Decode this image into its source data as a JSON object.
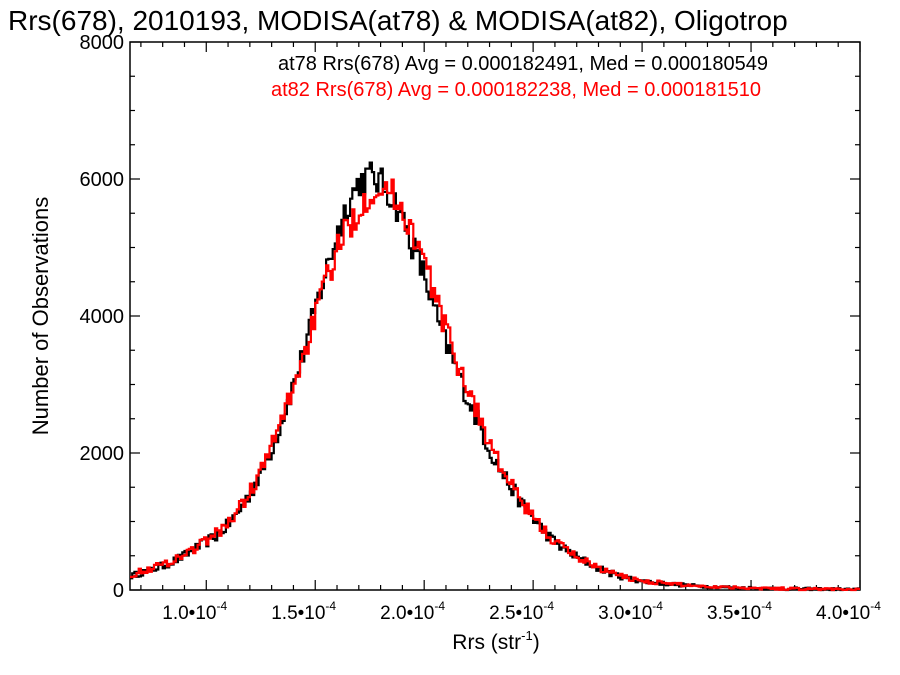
{
  "chart_data": {
    "type": "line",
    "title": "Rrs(678), 2010193, MODISA(at78) & MODISA(at82), Oligotrop",
    "xlabel": "Rrs (str",
    "xlabel_sup": "-1",
    "xlabel_close": ")",
    "ylabel": "Number of Observations",
    "xlim": [
      6.5e-05,
      0.0004
    ],
    "ylim": [
      0,
      8000
    ],
    "x_ticks": [
      {
        "value": 0.0001,
        "label": "1.0•10",
        "exp": "-4"
      },
      {
        "value": 0.00015,
        "label": "1.5•10",
        "exp": "-4"
      },
      {
        "value": 0.0002,
        "label": "2.0•10",
        "exp": "-4"
      },
      {
        "value": 0.00025,
        "label": "2.5•10",
        "exp": "-4"
      },
      {
        "value": 0.0003,
        "label": "3.0•10",
        "exp": "-4"
      },
      {
        "value": 0.00035,
        "label": "3.5•10",
        "exp": "-4"
      },
      {
        "value": 0.0004,
        "label": "4.0•10",
        "exp": "-4"
      }
    ],
    "y_ticks": [
      {
        "value": 0,
        "label": "0"
      },
      {
        "value": 2000,
        "label": "2000"
      },
      {
        "value": 4000,
        "label": "4000"
      },
      {
        "value": 6000,
        "label": "6000"
      },
      {
        "value": 8000,
        "label": "8000"
      }
    ],
    "annotations": [
      {
        "text": "at78 Rrs(678) Avg = 0.000182491, Med = 0.000180549",
        "color": "#000000"
      },
      {
        "text": "at82 Rrs(678) Avg = 0.000182238, Med = 0.000181510",
        "color": "#ff0000"
      }
    ],
    "series": [
      {
        "color": "#000000",
        "points": [
          [
            6.5e-05,
            200
          ],
          [
            7e-05,
            250
          ],
          [
            7.5e-05,
            300
          ],
          [
            8e-05,
            350
          ],
          [
            8.5e-05,
            420
          ],
          [
            9e-05,
            500
          ],
          [
            9.5e-05,
            600
          ],
          [
            0.0001,
            700
          ],
          [
            0.000105,
            800
          ],
          [
            0.00011,
            950
          ],
          [
            0.000115,
            1150
          ],
          [
            0.00012,
            1400
          ],
          [
            0.000125,
            1700
          ],
          [
            0.00013,
            2050
          ],
          [
            0.000135,
            2500
          ],
          [
            0.00014,
            3000
          ],
          [
            0.000145,
            3500
          ],
          [
            0.00015,
            4100
          ],
          [
            0.000155,
            4650
          ],
          [
            0.00016,
            5200
          ],
          [
            0.000165,
            5650
          ],
          [
            0.00017,
            5950
          ],
          [
            0.000175,
            6050
          ],
          [
            0.00018,
            5950
          ],
          [
            0.000185,
            5750
          ],
          [
            0.00019,
            5450
          ],
          [
            0.000195,
            5000
          ],
          [
            0.0002,
            4600
          ],
          [
            0.000205,
            4050
          ],
          [
            0.00021,
            3600
          ],
          [
            0.000215,
            3200
          ],
          [
            0.00022,
            2800
          ],
          [
            0.000225,
            2450
          ],
          [
            0.00023,
            2050
          ],
          [
            0.000235,
            1750
          ],
          [
            0.00024,
            1500
          ],
          [
            0.000245,
            1250
          ],
          [
            0.00025,
            1050
          ],
          [
            0.000255,
            850
          ],
          [
            0.00026,
            700
          ],
          [
            0.000265,
            580
          ],
          [
            0.00027,
            480
          ],
          [
            0.000275,
            400
          ],
          [
            0.00028,
            320
          ],
          [
            0.000285,
            250
          ],
          [
            0.00029,
            200
          ],
          [
            0.000295,
            160
          ],
          [
            0.0003,
            130
          ],
          [
            0.00031,
            95
          ],
          [
            0.00032,
            70
          ],
          [
            0.00033,
            50
          ],
          [
            0.00034,
            40
          ],
          [
            0.00035,
            30
          ],
          [
            0.00036,
            22
          ],
          [
            0.00037,
            17
          ],
          [
            0.00038,
            12
          ],
          [
            0.00039,
            9
          ],
          [
            0.0004,
            7
          ]
        ]
      },
      {
        "color": "#ff0000",
        "points": [
          [
            6.5e-05,
            220
          ],
          [
            7e-05,
            270
          ],
          [
            7.5e-05,
            320
          ],
          [
            8e-05,
            370
          ],
          [
            8.5e-05,
            440
          ],
          [
            9e-05,
            520
          ],
          [
            9.5e-05,
            620
          ],
          [
            0.0001,
            720
          ],
          [
            0.000105,
            830
          ],
          [
            0.00011,
            980
          ],
          [
            0.000115,
            1180
          ],
          [
            0.00012,
            1430
          ],
          [
            0.000125,
            1730
          ],
          [
            0.00013,
            2080
          ],
          [
            0.000135,
            2520
          ],
          [
            0.00014,
            2980
          ],
          [
            0.000145,
            3450
          ],
          [
            0.00015,
            4000
          ],
          [
            0.000155,
            4500
          ],
          [
            0.00016,
            4950
          ],
          [
            0.000165,
            5300
          ],
          [
            0.00017,
            5550
          ],
          [
            0.000175,
            5800
          ],
          [
            0.00018,
            5900
          ],
          [
            0.000185,
            5800
          ],
          [
            0.00019,
            5550
          ],
          [
            0.000195,
            5200
          ],
          [
            0.0002,
            4800
          ],
          [
            0.000205,
            4300
          ],
          [
            0.00021,
            3800
          ],
          [
            0.000215,
            3350
          ],
          [
            0.00022,
            2950
          ],
          [
            0.000225,
            2550
          ],
          [
            0.00023,
            2150
          ],
          [
            0.000235,
            1800
          ],
          [
            0.00024,
            1520
          ],
          [
            0.000245,
            1270
          ],
          [
            0.00025,
            1060
          ],
          [
            0.000255,
            870
          ],
          [
            0.00026,
            710
          ],
          [
            0.000265,
            590
          ],
          [
            0.00027,
            490
          ],
          [
            0.000275,
            405
          ],
          [
            0.00028,
            330
          ],
          [
            0.000285,
            260
          ],
          [
            0.00029,
            205
          ],
          [
            0.000295,
            165
          ],
          [
            0.0003,
            135
          ],
          [
            0.00031,
            100
          ],
          [
            0.00032,
            72
          ],
          [
            0.00033,
            52
          ],
          [
            0.00034,
            42
          ],
          [
            0.00035,
            32
          ],
          [
            0.00036,
            24
          ],
          [
            0.00037,
            18
          ],
          [
            0.00038,
            13
          ],
          [
            0.00039,
            10
          ],
          [
            0.0004,
            8
          ]
        ]
      }
    ]
  }
}
